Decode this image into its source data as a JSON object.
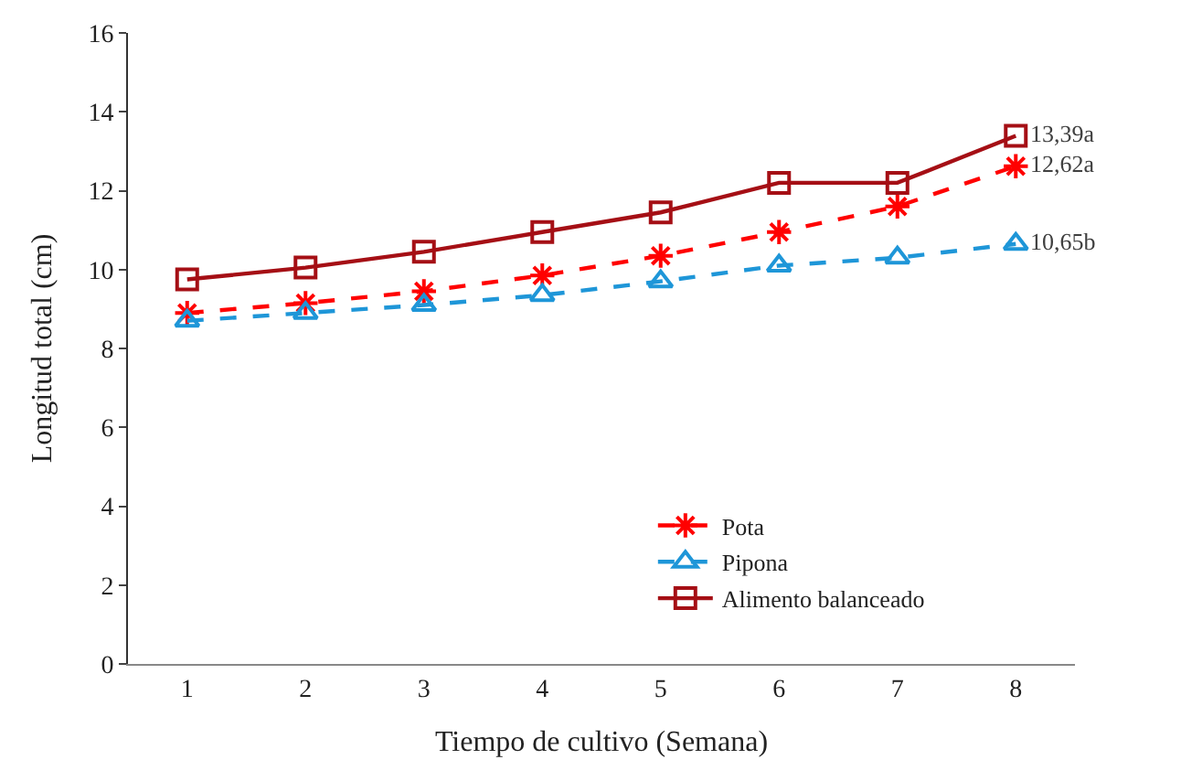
{
  "chart_data": {
    "type": "line",
    "xlabel": "Tiempo de cultivo (Semana)",
    "ylabel": "Longitud total (cm)",
    "categories": [
      "1",
      "2",
      "3",
      "4",
      "5",
      "6",
      "7",
      "8"
    ],
    "ylim": [
      0,
      16
    ],
    "yticks": [
      0,
      2,
      4,
      6,
      8,
      10,
      12,
      14,
      16
    ],
    "legend": "bottom right",
    "series": [
      {
        "name": "Pota",
        "color": "#ff0000",
        "marker": "cross",
        "line_style": "dashed",
        "values": [
          8.9,
          9.15,
          9.45,
          9.85,
          10.35,
          10.95,
          11.6,
          12.62
        ],
        "value_labels": [
          null,
          null,
          null,
          null,
          null,
          null,
          null,
          "12,62a"
        ]
      },
      {
        "name": "Pipona",
        "color": "#1e96d8",
        "marker": "triangle",
        "line_style": "dashed",
        "values": [
          8.7,
          8.9,
          9.1,
          9.35,
          9.7,
          10.1,
          10.3,
          10.65
        ],
        "value_labels": [
          null,
          null,
          null,
          null,
          null,
          null,
          null,
          "10,65b"
        ]
      },
      {
        "name": "Alimento balanceado",
        "color": "#a50f15",
        "marker": "square",
        "line_style": "solid",
        "values": [
          9.75,
          10.05,
          10.45,
          10.95,
          11.45,
          12.2,
          12.2,
          13.39
        ],
        "value_labels": [
          null,
          null,
          null,
          null,
          null,
          null,
          null,
          "13,39a"
        ]
      }
    ]
  }
}
